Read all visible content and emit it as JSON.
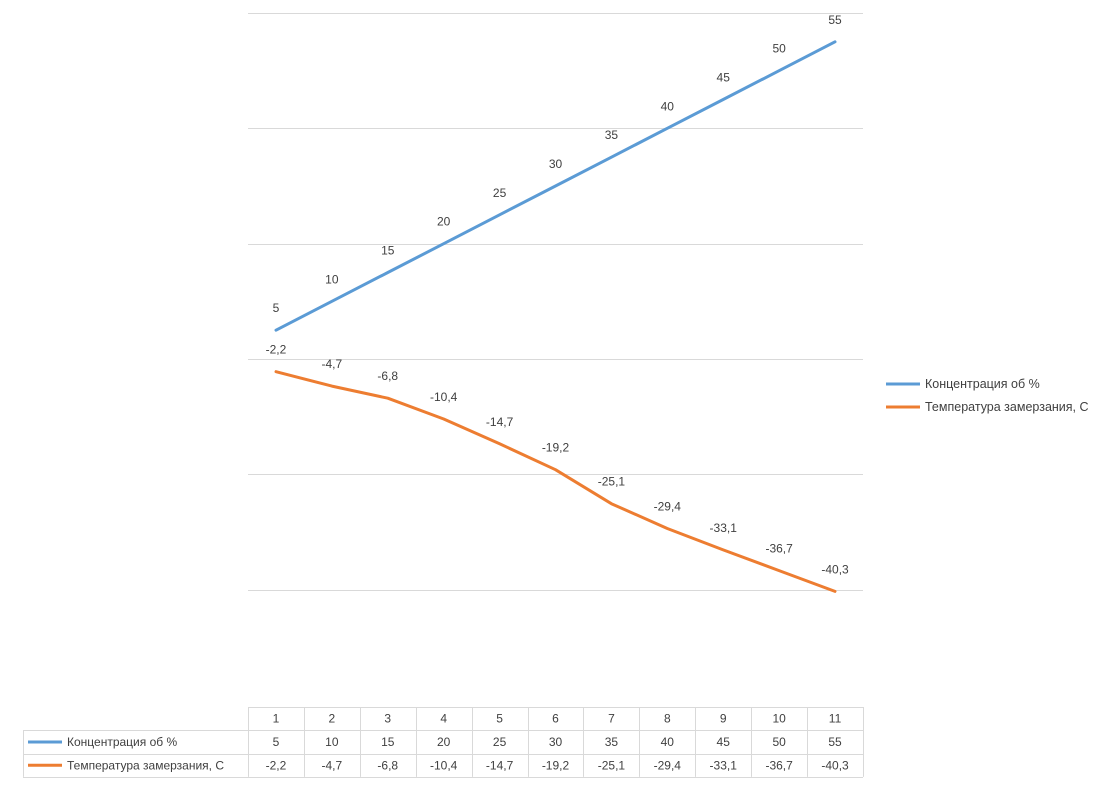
{
  "chart_data": {
    "type": "line",
    "categories": [
      "1",
      "2",
      "3",
      "4",
      "5",
      "6",
      "7",
      "8",
      "9",
      "10",
      "11"
    ],
    "series": [
      {
        "name": "Концентрация об %",
        "color": "#5B9BD5",
        "values": [
          5,
          10,
          15,
          20,
          25,
          30,
          35,
          40,
          45,
          50,
          55
        ],
        "labels": [
          "5",
          "10",
          "15",
          "20",
          "25",
          "30",
          "35",
          "40",
          "45",
          "50",
          "55"
        ]
      },
      {
        "name": "Температура замерзания, С",
        "color": "#ED7D31",
        "values": [
          -2.2,
          -4.7,
          -6.8,
          -10.4,
          -14.7,
          -19.2,
          -25.1,
          -29.4,
          -33.1,
          -36.7,
          -40.3
        ],
        "labels": [
          "-2,2",
          "-4,7",
          "-6,8",
          "-10,4",
          "-14,7",
          "-19,2",
          "-25,1",
          "-29,4",
          "-33,1",
          "-36,7",
          "-40,3"
        ]
      }
    ],
    "ylim": [
      -60,
      60
    ],
    "grid": true,
    "legend": "right",
    "data_table": true
  }
}
